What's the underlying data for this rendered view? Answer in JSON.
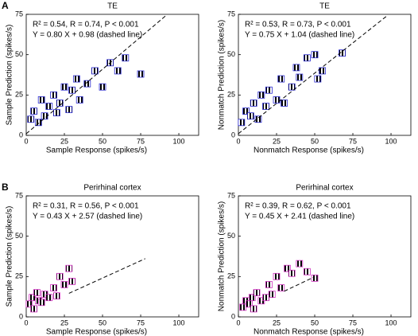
{
  "chart_data": [
    {
      "type": "scatter",
      "panel_label": "A",
      "title": "TE",
      "annotations": [
        "R² = 0.54, R = 0.74, P < 0.001",
        "Y = 0.80 X + 0.98 (dashed line)"
      ],
      "xlabel": "Sample Response (spikes/s)",
      "ylabel": "Sample Prediction (spikes/s)",
      "x": [
        3,
        5,
        8,
        10,
        12,
        15,
        18,
        20,
        22,
        25,
        28,
        30,
        33,
        35,
        40,
        45,
        50,
        55,
        60,
        65,
        75
      ],
      "values": [
        10,
        15,
        8,
        22,
        12,
        18,
        25,
        14,
        20,
        30,
        16,
        28,
        35,
        22,
        32,
        40,
        30,
        45,
        40,
        48,
        38
      ],
      "color": "#2a2ad0",
      "fit": {
        "x": [
          0,
          92
        ],
        "values": [
          0.98,
          74.58
        ]
      },
      "xlim": [
        0,
        113
      ],
      "ylim": [
        0,
        75
      ],
      "xticks": [
        0,
        25,
        50,
        75,
        100
      ],
      "yticks": [
        0,
        25,
        50,
        75
      ]
    },
    {
      "type": "scatter",
      "title": "TE",
      "annotations": [
        "R² = 0.53, R = 0.73, P < 0.001",
        "Y = 0.75 X + 1.04 (dashed line)"
      ],
      "xlabel": "Nonmatch Response (spikes/s)",
      "ylabel": "Nonmatch Prediction (spikes/s)",
      "x": [
        2,
        5,
        8,
        10,
        13,
        15,
        18,
        20,
        25,
        28,
        30,
        35,
        38,
        40,
        45,
        50,
        52,
        55,
        68
      ],
      "values": [
        8,
        15,
        12,
        20,
        10,
        25,
        18,
        28,
        22,
        35,
        20,
        30,
        42,
        36,
        48,
        50,
        35,
        40,
        51
      ],
      "color": "#2a2ad0",
      "fit": {
        "x": [
          0,
          98
        ],
        "values": [
          1.04,
          74.54
        ]
      },
      "xlim": [
        0,
        113
      ],
      "ylim": [
        0,
        75
      ],
      "xticks": [
        0,
        25,
        50,
        75,
        100
      ],
      "yticks": [
        0,
        25,
        50,
        75
      ]
    },
    {
      "type": "scatter",
      "panel_label": "B",
      "title": "Perirhinal cortex",
      "annotations": [
        "R² = 0.31, R = 0.56, P < 0.001",
        "Y = 0.43 X + 2.57 (dashed line)"
      ],
      "xlabel": "Sample Response (spikes/s)",
      "ylabel": "Sample Prediction (spikes/s)",
      "x": [
        2,
        4,
        5,
        7,
        8,
        10,
        12,
        15,
        18,
        20,
        22,
        25,
        28,
        30
      ],
      "values": [
        8,
        12,
        5,
        15,
        10,
        9,
        14,
        12,
        18,
        13,
        25,
        20,
        30,
        22
      ],
      "color": "#d030c0",
      "fit": {
        "x": [
          28,
          78
        ],
        "values": [
          14.6,
          36.1
        ]
      },
      "xlim": [
        0,
        113
      ],
      "ylim": [
        0,
        75
      ],
      "xticks": [
        0,
        25,
        50,
        75,
        100
      ],
      "yticks": [
        0,
        25,
        50,
        75
      ]
    },
    {
      "type": "scatter",
      "title": "Perirhinal cortex",
      "annotations": [
        "R² = 0.39, R = 0.62, P < 0.001",
        "Y = 0.45 X + 2.41 (dashed line)"
      ],
      "xlabel": "Nonmatch Response (spikes/s)",
      "ylabel": "Nonmatch Prediction (spikes/s)",
      "x": [
        3,
        5,
        7,
        9,
        10,
        12,
        15,
        18,
        20,
        22,
        25,
        28,
        32,
        35,
        40,
        45,
        50
      ],
      "values": [
        6,
        10,
        8,
        12,
        5,
        15,
        10,
        12,
        20,
        14,
        25,
        18,
        30,
        27,
        33,
        28,
        24
      ],
      "color": "#d030c0",
      "fit": {
        "x": [
          30,
          50
        ],
        "values": [
          15.9,
          24.9
        ]
      },
      "xlim": [
        0,
        113
      ],
      "ylim": [
        0,
        75
      ],
      "xticks": [
        0,
        25,
        50,
        75,
        100
      ],
      "yticks": [
        0,
        25,
        50,
        75
      ]
    }
  ]
}
